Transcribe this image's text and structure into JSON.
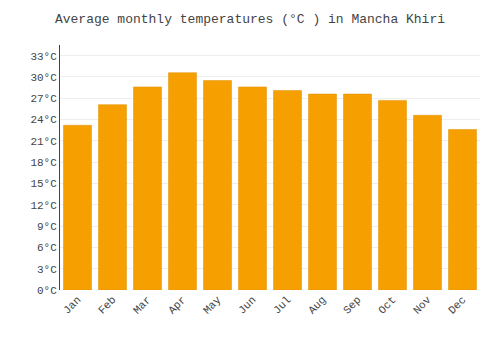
{
  "chart_data": {
    "type": "bar",
    "title": "Average monthly temperatures (°C ) in Mancha Khiri",
    "categories": [
      "Jan",
      "Feb",
      "Mar",
      "Apr",
      "May",
      "Jun",
      "Jul",
      "Aug",
      "Sep",
      "Oct",
      "Nov",
      "Dec"
    ],
    "values": [
      23.2,
      26.1,
      28.6,
      30.6,
      29.5,
      28.6,
      28.1,
      27.6,
      27.6,
      26.7,
      24.6,
      22.6
    ],
    "color": "#F5A000",
    "ylim": [
      0,
      34.5
    ],
    "yticks": [
      {
        "value": 0,
        "label": "0°C"
      },
      {
        "value": 3,
        "label": "3°C"
      },
      {
        "value": 6,
        "label": "6°C"
      },
      {
        "value": 9,
        "label": "9°C"
      },
      {
        "value": 12,
        "label": "12°C"
      },
      {
        "value": 15,
        "label": "15°C"
      },
      {
        "value": 18,
        "label": "18°C"
      },
      {
        "value": 21,
        "label": "21°C"
      },
      {
        "value": 24,
        "label": "24°C"
      },
      {
        "value": 27,
        "label": "27°C"
      },
      {
        "value": 30,
        "label": "30°C"
      },
      {
        "value": 33,
        "label": "33°C"
      }
    ],
    "grid": true
  }
}
